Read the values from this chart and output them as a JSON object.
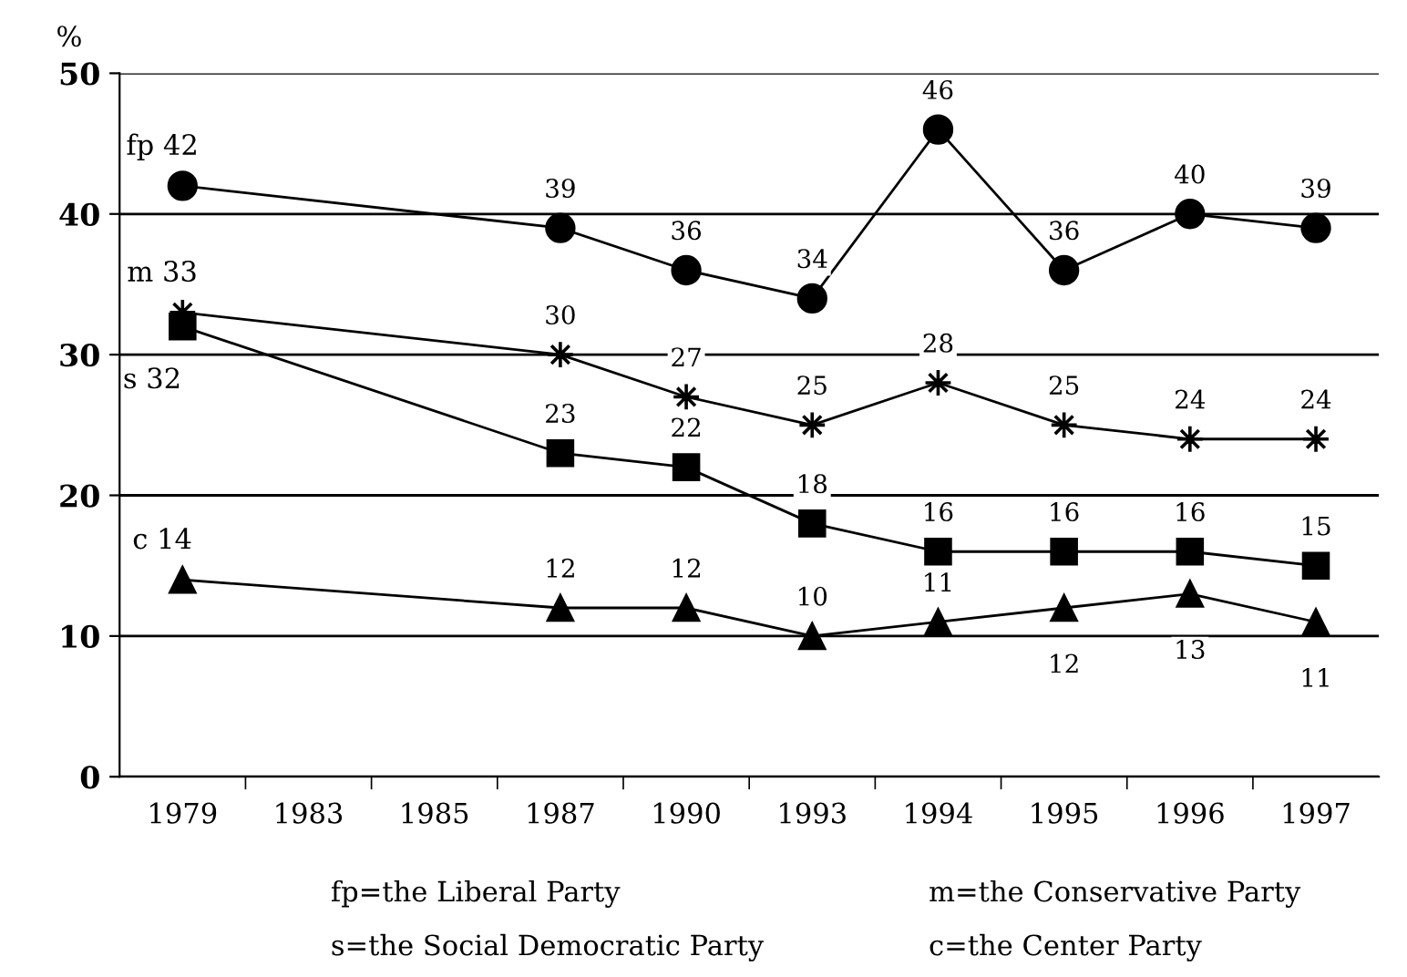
{
  "chart_data": {
    "type": "line",
    "ylabel": "%",
    "categories": [
      "1979",
      "1983",
      "1985",
      "1987",
      "1990",
      "1993",
      "1994",
      "1995",
      "1996",
      "1997"
    ],
    "series": [
      {
        "name": "fp",
        "color": "#000000",
        "marker": "circle",
        "values": [
          42,
          null,
          null,
          39,
          36,
          34,
          46,
          36,
          40,
          39
        ],
        "value_labels": [
          "42",
          null,
          null,
          "39",
          "36",
          "34",
          "46",
          "36",
          "40",
          "39"
        ]
      },
      {
        "name": "m",
        "color": "#000000",
        "marker": "star",
        "values": [
          33,
          null,
          null,
          30,
          27,
          25,
          28,
          25,
          24,
          24
        ],
        "value_labels": [
          "33",
          null,
          null,
          "30",
          "27",
          "25",
          "28",
          "25",
          "24",
          "24"
        ]
      },
      {
        "name": "s",
        "color": "#000000",
        "marker": "square",
        "values": [
          32,
          null,
          null,
          23,
          22,
          18,
          16,
          16,
          16,
          15
        ],
        "value_labels": [
          "32",
          null,
          null,
          "23",
          "22",
          "18",
          "16",
          "16",
          "16",
          "15"
        ]
      },
      {
        "name": "c",
        "color": "#000000",
        "marker": "triangle",
        "values": [
          14,
          null,
          null,
          12,
          12,
          10,
          11,
          12,
          13,
          11
        ],
        "value_labels": [
          "14",
          null,
          null,
          "12",
          "12",
          "10",
          "11",
          "12",
          "13",
          "11"
        ]
      }
    ],
    "ylim": [
      0,
      50
    ],
    "yticks": [
      0,
      10,
      20,
      30,
      40,
      50
    ],
    "grid": "y",
    "legend": false,
    "annotations": [
      "fp=the Liberal Party",
      "m=the Conservative Party",
      "s=the Social Democratic Party",
      "c=the Center Party"
    ]
  }
}
